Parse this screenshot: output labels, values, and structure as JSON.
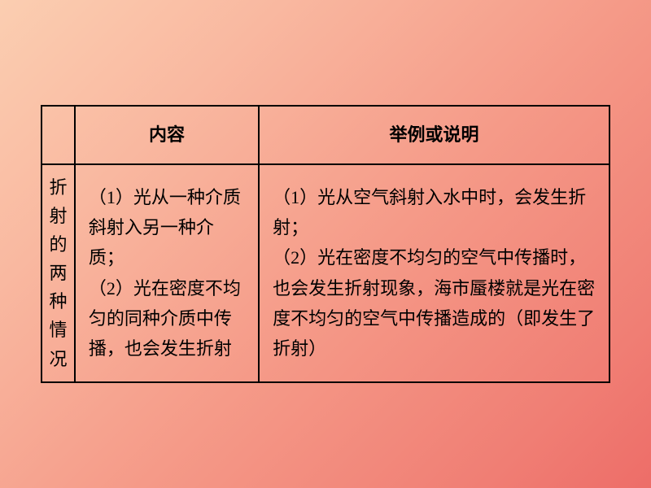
{
  "background": {
    "gradient_start": "#fbceb1",
    "gradient_mid1": "#f9b8a0",
    "gradient_mid2": "#f59a88",
    "gradient_mid3": "#f07e74",
    "gradient_end": "#ed6d68"
  },
  "table": {
    "border_color": "#000000",
    "border_width": 2.5,
    "text_color": "#000000",
    "font_size": 22,
    "header": {
      "blank": "",
      "col1": "内容",
      "col2": "举例或说明"
    },
    "row": {
      "label": "折射的两种情况",
      "content": "（1）光从一种介质斜射入另一种介质；\n（2）光在密度不均匀的同种介质中传播，也会发生折射",
      "example": "（1）光从空气斜射入水中时，会发生折射；\n（2）光在密度不均匀的空气中传播时，也会发生折射现象，海市蜃楼就是光在密度不均匀的空气中传播造成的（即发生了折射）"
    }
  }
}
